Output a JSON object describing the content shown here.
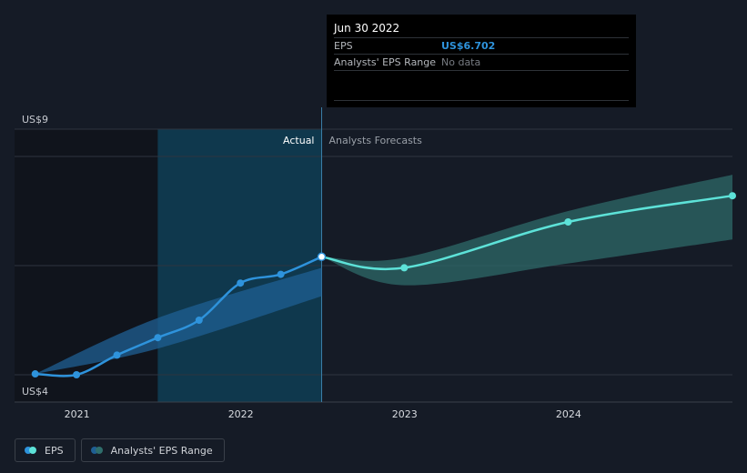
{
  "chart_data": {
    "type": "line",
    "y_axis": {
      "top_label": "US$9",
      "bottom_label": "US$4",
      "ylim": [
        4,
        9
      ]
    },
    "x_axis": {
      "tick_labels": [
        "2021",
        "2022",
        "2023",
        "2024"
      ],
      "xlim": [
        "2020-08-15",
        "2024-12-31"
      ]
    },
    "sections": {
      "actual_label": "Actual",
      "forecast_label": "Analysts Forecasts"
    },
    "series": [
      {
        "name": "EPS",
        "kind": "actual",
        "points": [
          {
            "x": "2020-09-30",
            "y": 4.02
          },
          {
            "x": "2020-12-31",
            "y": 4.0
          },
          {
            "x": "2021-03-31",
            "y": 4.45
          },
          {
            "x": "2021-06-30",
            "y": 4.85
          },
          {
            "x": "2021-09-30",
            "y": 5.25
          },
          {
            "x": "2021-12-31",
            "y": 6.1
          },
          {
            "x": "2022-03-31",
            "y": 6.3
          },
          {
            "x": "2022-06-30",
            "y": 6.702
          }
        ]
      },
      {
        "name": "EPS",
        "kind": "forecast",
        "points": [
          {
            "x": "2022-06-30",
            "y": 6.702
          },
          {
            "x": "2022-12-31",
            "y": 6.45
          },
          {
            "x": "2023-12-31",
            "y": 7.5
          },
          {
            "x": "2024-12-31",
            "y": 8.1
          }
        ]
      }
    ],
    "range_bands": [
      {
        "name": "Analysts' EPS Range",
        "kind": "actual",
        "upper": [
          {
            "x": "2020-09-30",
            "y": 4.02
          },
          {
            "x": "2021-06-30",
            "y": 5.3
          },
          {
            "x": "2022-06-30",
            "y": 6.45
          }
        ],
        "lower": [
          {
            "x": "2020-09-30",
            "y": 4.02
          },
          {
            "x": "2021-06-30",
            "y": 4.6
          },
          {
            "x": "2022-06-30",
            "y": 5.8
          }
        ]
      },
      {
        "name": "Analysts' EPS Range",
        "kind": "forecast",
        "upper": [
          {
            "x": "2022-06-30",
            "y": 6.702
          },
          {
            "x": "2022-12-31",
            "y": 6.68
          },
          {
            "x": "2023-12-31",
            "y": 7.75
          },
          {
            "x": "2024-12-31",
            "y": 8.58
          }
        ],
        "lower": [
          {
            "x": "2022-06-30",
            "y": 6.702
          },
          {
            "x": "2022-12-31",
            "y": 6.05
          },
          {
            "x": "2023-12-31",
            "y": 6.55
          },
          {
            "x": "2024-12-31",
            "y": 7.1
          }
        ]
      }
    ],
    "highlight_region": {
      "from": "2021-06-30",
      "to": "2022-06-30"
    },
    "colors": {
      "actual": "#2e93dc",
      "forecast": "#5de2d8",
      "actual_band": "#1f5f93",
      "forecast_band": "#2f6e6c",
      "highlight": "#0e3d55",
      "past_shade": "#10141c",
      "grid": "#2e3440",
      "axis_text": "#c7cad0"
    },
    "grid": true,
    "legend_position": "bottom-left"
  },
  "tooltip": {
    "date": "Jun 30 2022",
    "rows": [
      {
        "label": "EPS",
        "value": "US$6.702"
      },
      {
        "label": "Analysts' EPS Range",
        "value": "No data"
      }
    ]
  },
  "legend": [
    {
      "label": "EPS"
    },
    {
      "label": "Analysts' EPS Range"
    }
  ]
}
